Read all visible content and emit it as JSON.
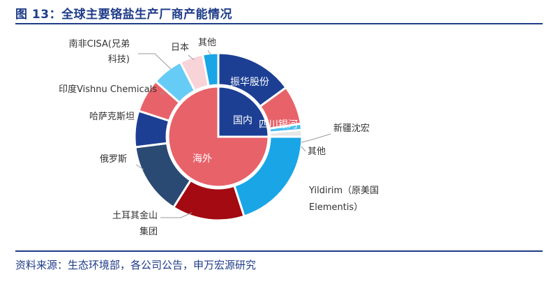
{
  "title": "图 13：全球主要铬盐生产厂商产能情况",
  "source": "资料来源：生态环境部，各公司公告，申万宏源研究",
  "chart_data": {
    "type": "donut",
    "note": "values estimated from slice angles (no data labels shown)",
    "inner": [
      {
        "name": "国内",
        "value": 25,
        "color": "#1C3F94"
      },
      {
        "name": "海外",
        "value": 75,
        "color": "#E8626A"
      }
    ],
    "outer": [
      {
        "name": "振华股份",
        "value": 15,
        "color": "#1C3F94",
        "label_lines": [
          "振华股份"
        ],
        "label_inside": true
      },
      {
        "name": "四川银河",
        "value": 7.5,
        "color": "#E8626A",
        "label_lines": [
          "四川银河"
        ],
        "label_inside": true
      },
      {
        "name": "新疆沈宏",
        "value": 1.2,
        "color": "#47BDF0",
        "label_lines": [
          "新疆沈宏"
        ],
        "label_inside": false
      },
      {
        "name": "其他",
        "value": 1.3,
        "color": "#E7E7E7",
        "label_lines": [
          "其他"
        ],
        "label_inside": false
      },
      {
        "name": "Yildirim（原美国Elementis）",
        "value": 20,
        "color": "#1AA6E6",
        "label_lines": [
          "Yildirim（原美国",
          "Elementis）"
        ],
        "label_inside": false
      },
      {
        "name": "土耳其金山集团",
        "value": 14,
        "color": "#A30A12",
        "label_lines": [
          "土耳其金山",
          "集团"
        ],
        "label_inside": false
      },
      {
        "name": "俄罗斯",
        "value": 14,
        "color": "#2A4A74",
        "label_lines": [
          "俄罗斯"
        ],
        "label_inside": false
      },
      {
        "name": "哈萨克斯坦",
        "value": 7,
        "color": "#1C3F94",
        "label_lines": [
          "哈萨克斯坦"
        ],
        "label_inside": false
      },
      {
        "name": "印度Vishnu Chemicals",
        "value": 6.5,
        "color": "#E8626A",
        "label_lines": [
          "印度Vishnu Chemicals"
        ],
        "label_inside": false
      },
      {
        "name": "南非CISA(兄弟科技)",
        "value": 6,
        "color": "#66CCF5",
        "label_lines": [
          "南非CISA(兄弟",
          "科技)"
        ],
        "label_inside": false
      },
      {
        "name": "日本",
        "value": 4.5,
        "color": "#F8D3D7",
        "label_lines": [
          "日本"
        ],
        "label_inside": false
      },
      {
        "name": "其他",
        "value": 3,
        "color": "#1AA6E6",
        "label_lines": [
          "其他"
        ],
        "label_inside": false
      }
    ]
  }
}
